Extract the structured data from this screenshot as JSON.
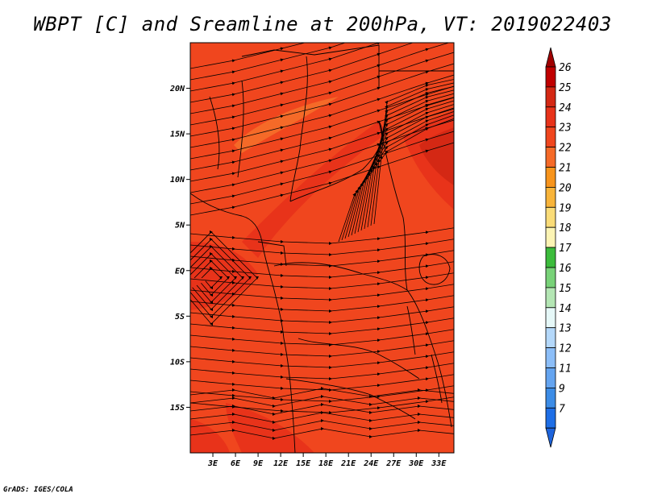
{
  "title": "WBPT [C] and Sreamline at 200hPa, VT: 2019022403",
  "footer": "GrADS: IGES/COLA",
  "map": {
    "lon_range": [
      0,
      35
    ],
    "lat_range": [
      -20,
      25
    ],
    "lat_ticks": [
      {
        "value": 20,
        "label": "20N"
      },
      {
        "value": 15,
        "label": "15N"
      },
      {
        "value": 10,
        "label": "10N"
      },
      {
        "value": 5,
        "label": "5N"
      },
      {
        "value": 0,
        "label": "EQ"
      },
      {
        "value": -5,
        "label": "5S"
      },
      {
        "value": -10,
        "label": "10S"
      },
      {
        "value": -15,
        "label": "15S"
      }
    ],
    "lon_ticks": [
      {
        "value": 3,
        "label": "3E"
      },
      {
        "value": 6,
        "label": "6E"
      },
      {
        "value": 9,
        "label": "9E"
      },
      {
        "value": 12,
        "label": "12E"
      },
      {
        "value": 15,
        "label": "15E"
      },
      {
        "value": 18,
        "label": "18E"
      },
      {
        "value": 21,
        "label": "21E"
      },
      {
        "value": 24,
        "label": "24E"
      },
      {
        "value": 27,
        "label": "27E"
      },
      {
        "value": 30,
        "label": "30E"
      },
      {
        "value": 33,
        "label": "33E"
      }
    ],
    "base_color": "#f0461e",
    "feature_colors": {
      "band_24": "#e8331a",
      "band_25": "#d42814",
      "band_22": "#f56a28"
    },
    "line_color": "#000000"
  },
  "colorbar": {
    "levels": [
      {
        "label": "26",
        "color": "#c00000"
      },
      {
        "label": "25",
        "color": "#d42814"
      },
      {
        "label": "24",
        "color": "#e8331a"
      },
      {
        "label": "23",
        "color": "#f0461e"
      },
      {
        "label": "22",
        "color": "#f56a28"
      },
      {
        "label": "21",
        "color": "#f7941c"
      },
      {
        "label": "20",
        "color": "#f8b43a"
      },
      {
        "label": "19",
        "color": "#fadc78"
      },
      {
        "label": "18",
        "color": "#fcf4b4"
      },
      {
        "label": "17",
        "color": "#3cbc3c"
      },
      {
        "label": "16",
        "color": "#78d278"
      },
      {
        "label": "15",
        "color": "#b4e6b4"
      },
      {
        "label": "14",
        "color": "#e6f8f8"
      },
      {
        "label": "13",
        "color": "#b4d8fa"
      },
      {
        "label": "12",
        "color": "#8cbef8"
      },
      {
        "label": "11",
        "color": "#64a4f0"
      },
      {
        "label": "9",
        "color": "#3c8ce6"
      },
      {
        "label": "7",
        "color": "#1e6ee6"
      }
    ],
    "top_cap_color": "#a00000",
    "bottom_cap_color": "#1e64dc"
  }
}
